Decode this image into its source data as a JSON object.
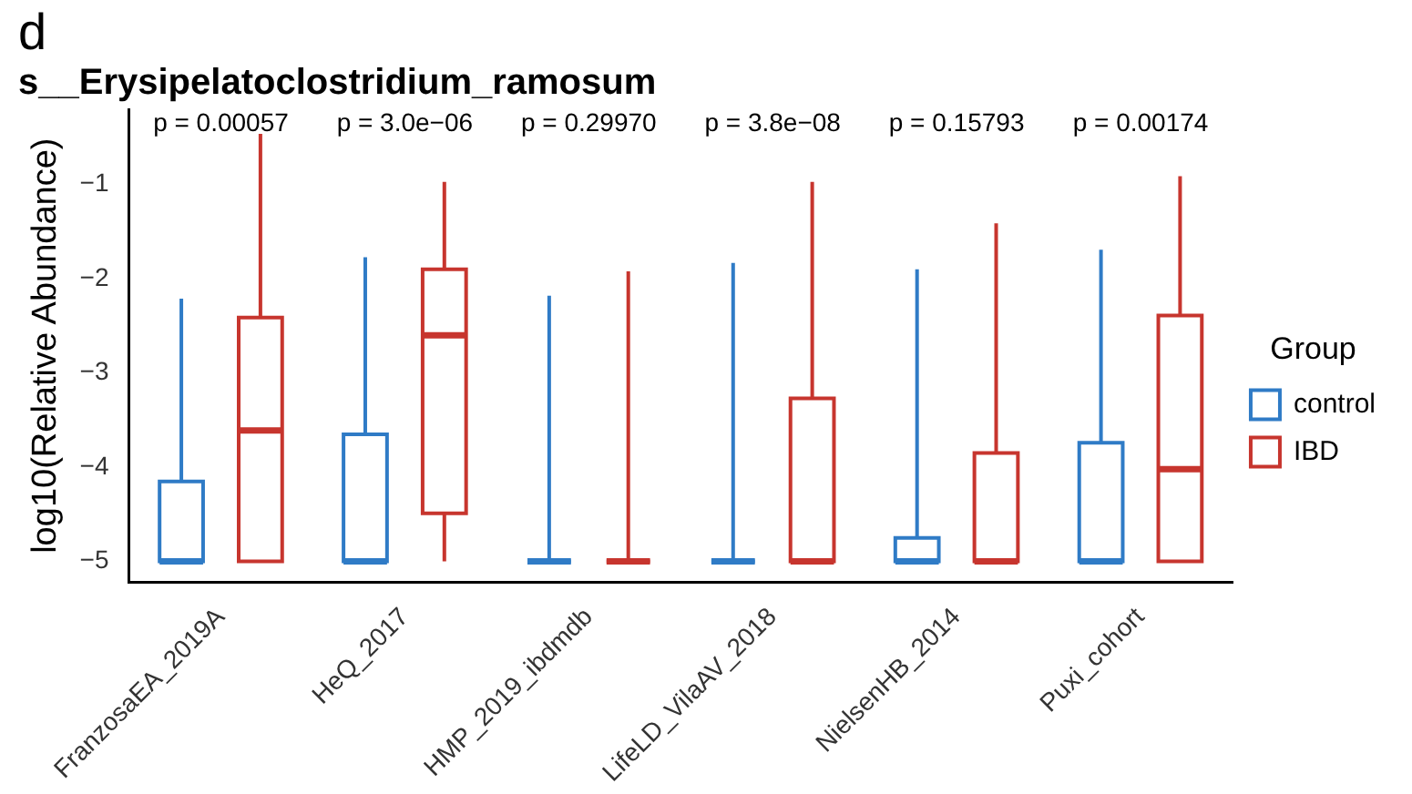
{
  "chart_data": {
    "type": "box",
    "title": "s__Erysipelatoclostridium_ramosum",
    "ylabel": "log10(Relative Abundance)",
    "legend_title": "Group",
    "legend": "right",
    "grid": false,
    "categories": [
      "FranzosaEA_2019A",
      "HeQ_2017",
      "HMP_2019_ibdmdb",
      "LifeLD_VilaAV_2018",
      "NielsenHB_2014",
      "Puxi_cohort"
    ],
    "ylim": [
      -5.22,
      -0.2
    ],
    "yticks": [
      -5,
      -4,
      -3,
      -2,
      -1
    ],
    "series": [
      {
        "name": "control",
        "color": "#2f7bc6",
        "boxes": [
          {
            "low": -5,
            "q1": -5,
            "median": -5,
            "q3": -4.15,
            "high": -2.21
          },
          {
            "low": -5,
            "q1": -5,
            "median": -5,
            "q3": -3.65,
            "high": -1.77
          },
          {
            "low": -5,
            "q1": -5,
            "median": -5,
            "q3": -5,
            "high": -2.18
          },
          {
            "low": -5,
            "q1": -5,
            "median": -5,
            "q3": -5,
            "high": -1.83
          },
          {
            "low": -5,
            "q1": -5,
            "median": -5,
            "q3": -4.75,
            "high": -1.9
          },
          {
            "low": -5,
            "q1": -5,
            "median": -5,
            "q3": -3.74,
            "high": -1.69
          }
        ]
      },
      {
        "name": "IBD",
        "color": "#c7352e",
        "boxes": [
          {
            "low": -5,
            "q1": -5,
            "median": -3.61,
            "q3": -2.41,
            "high": -0.46
          },
          {
            "low": -5,
            "q1": -4.49,
            "median": -2.6,
            "q3": -1.9,
            "high": -0.97
          },
          {
            "low": -5,
            "q1": -5,
            "median": -5,
            "q3": -5,
            "high": -1.92
          },
          {
            "low": -5,
            "q1": -5,
            "median": -5,
            "q3": -3.27,
            "high": -0.97
          },
          {
            "low": -5,
            "q1": -5,
            "median": -5,
            "q3": -3.85,
            "high": -1.41
          },
          {
            "low": -5,
            "q1": -5,
            "median": -4.02,
            "q3": -2.39,
            "high": -0.91
          }
        ]
      }
    ],
    "annotations": [
      "d",
      "p = 0.00057",
      "p = 3.0e−06",
      "p = 0.29970",
      "p = 3.8e−08",
      "p = 0.15793",
      "p = 0.00174"
    ]
  }
}
